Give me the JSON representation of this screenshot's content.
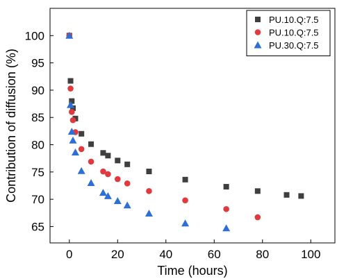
{
  "chart_data": {
    "type": "scatter",
    "title": "",
    "xlabel": "Time (hours)",
    "ylabel": "Contribution of diffusion (%)",
    "xlim": [
      -8,
      110
    ],
    "ylim": [
      62,
      105
    ],
    "xticks": [
      0,
      20,
      40,
      60,
      80,
      100
    ],
    "yticks": [
      65,
      70,
      75,
      80,
      85,
      90,
      95,
      100
    ],
    "grid": false,
    "legend_position": "top-right",
    "series": [
      {
        "name": "PU.10.Q:7.5",
        "marker": "square",
        "color": "#3f3f3f",
        "points": [
          [
            0,
            100
          ],
          [
            0.5,
            91.7
          ],
          [
            1,
            88
          ],
          [
            1.5,
            86.7
          ],
          [
            2.5,
            84.8
          ],
          [
            5,
            82
          ],
          [
            9,
            80.1
          ],
          [
            14,
            78.5
          ],
          [
            16,
            78
          ],
          [
            20,
            77.1
          ],
          [
            24,
            76.4
          ],
          [
            33,
            75.1
          ],
          [
            48,
            73.6
          ],
          [
            65,
            72.3
          ],
          [
            78,
            71.5
          ],
          [
            90,
            70.8
          ],
          [
            96,
            70.6
          ]
        ]
      },
      {
        "name": "PU.10.Q:7.5",
        "marker": "circle",
        "color": "#e03a3e",
        "points": [
          [
            0,
            100
          ],
          [
            0.5,
            90.3
          ],
          [
            1,
            86
          ],
          [
            1.5,
            84.5
          ],
          [
            2.5,
            82.3
          ],
          [
            5,
            79.2
          ],
          [
            9,
            76.9
          ],
          [
            14,
            75.1
          ],
          [
            16,
            74.6
          ],
          [
            20,
            73.7
          ],
          [
            24,
            72.9
          ],
          [
            33,
            71.5
          ],
          [
            48,
            69.8
          ],
          [
            65,
            68.2
          ],
          [
            78,
            66.7
          ]
        ]
      },
      {
        "name": "PU.30.Q:7.5",
        "marker": "triangle",
        "color": "#2e6fd6",
        "points": [
          [
            0,
            100
          ],
          [
            0.5,
            87.3
          ],
          [
            1,
            82.4
          ],
          [
            1.5,
            80.8
          ],
          [
            2.5,
            78.6
          ],
          [
            5,
            75.2
          ],
          [
            9,
            73
          ],
          [
            14,
            71.2
          ],
          [
            16,
            70.6
          ],
          [
            20,
            69.7
          ],
          [
            24,
            68.9
          ],
          [
            33,
            67.4
          ],
          [
            48,
            65.6
          ],
          [
            65,
            64.7
          ]
        ]
      }
    ]
  }
}
